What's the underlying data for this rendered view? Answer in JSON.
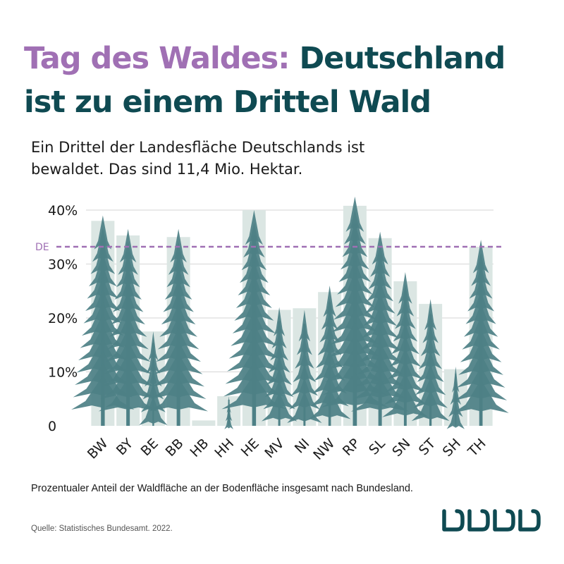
{
  "title": {
    "part1": "Tag des Waldes:",
    "part2": "Deutschland ist zu einem Drittel Wald"
  },
  "subtitle": "Ein Drittel der Landesfläche Deutschlands ist bewaldet. Das sind 11,4 Mio. Hektar.",
  "caption": "Prozentualer Anteil der Waldfläche an der Bodenfläche insgesamt nach Bundesland.",
  "source": "Quelle: Statistisches Bundesamt. 2022.",
  "colors": {
    "title_dark": "#0f4a52",
    "title_accent": "#a070b4",
    "bar": "#dbe6e3",
    "tree": "#4d8086",
    "reference_line": "#a070b4",
    "grid": "#d6d6d6",
    "logo": "#0f4a52"
  },
  "chart_data": {
    "type": "bar",
    "categories": [
      "BW",
      "BY",
      "BE",
      "BB",
      "HB",
      "HH",
      "HE",
      "MV",
      "NI",
      "NW",
      "RP",
      "SL",
      "SN",
      "ST",
      "SH",
      "TH"
    ],
    "values": [
      38,
      35.3,
      17.5,
      35,
      1,
      5.5,
      40,
      21.5,
      21.8,
      24.8,
      40.8,
      34.8,
      26.8,
      22.6,
      10.5,
      33.2
    ],
    "tree_heights": [
      39,
      36.5,
      17.5,
      36.5,
      0,
      5.5,
      40,
      22,
      21.5,
      26,
      42.5,
      36,
      28.5,
      23.5,
      11,
      34.5
    ],
    "reference_line": {
      "label": "DE",
      "value": 33.2
    },
    "yticks": [
      "0",
      "10%",
      "20%",
      "30%",
      "40%"
    ],
    "ylim": [
      0,
      40
    ],
    "grid": true
  }
}
